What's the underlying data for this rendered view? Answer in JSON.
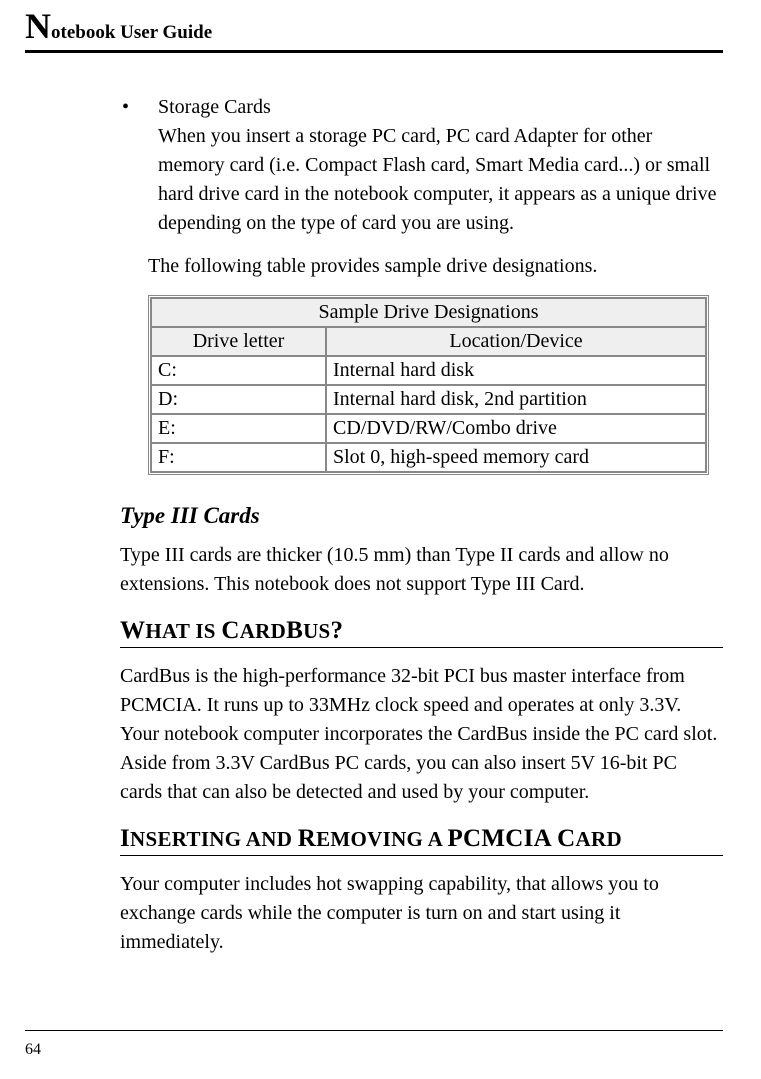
{
  "header": {
    "dropcap": "N",
    "rest": "otebook User Guide"
  },
  "bullet": {
    "title": "Storage Cards",
    "body": "When you insert a storage PC card, PC card Adapter for other memory card (i.e. Compact Flash card, Smart Media card...) or small hard drive card in the notebook computer, it appears as a unique drive depending on the type of card you are using."
  },
  "para_intro": "The following table provides sample drive designations.",
  "table": {
    "caption": "Sample Drive Designations",
    "col1_header": "Drive letter",
    "col2_header": "Location/Device",
    "rows": [
      {
        "letter": "C:",
        "loc": "Internal hard disk"
      },
      {
        "letter": "D:",
        "loc": "Internal hard disk, 2nd partition"
      },
      {
        "letter": "E:",
        "loc": "CD/DVD/RW/Combo drive"
      },
      {
        "letter": "F:",
        "loc": "Slot 0, high-speed memory card"
      }
    ]
  },
  "section_type3": {
    "heading": "Type III Cards",
    "body": "Type III cards are thicker (10.5 mm) than Type II cards and allow no extensions. This notebook does not support Type III Card."
  },
  "section_cardbus": {
    "heading_parts": [
      "W",
      "HAT IS ",
      "C",
      "ARD",
      "B",
      "US",
      "?"
    ],
    "body": "CardBus is the high-performance 32-bit PCI bus master interface from PCMCIA. It runs up to 33MHz clock speed and operates at only 3.3V. Your notebook computer incorporates the CardBus inside the PC card slot. Aside from 3.3V CardBus PC cards, you can also insert 5V 16-bit PC cards that can also be detected and used by your computer."
  },
  "section_insert": {
    "heading_parts": [
      "I",
      "NSERTING AND ",
      "R",
      "EMOVING A ",
      "PCMCIA C",
      "ARD"
    ],
    "body": "Your computer includes hot swapping capability, that allows you to exchange cards while the computer is turn on and start using it immediately."
  },
  "page_number": "64"
}
